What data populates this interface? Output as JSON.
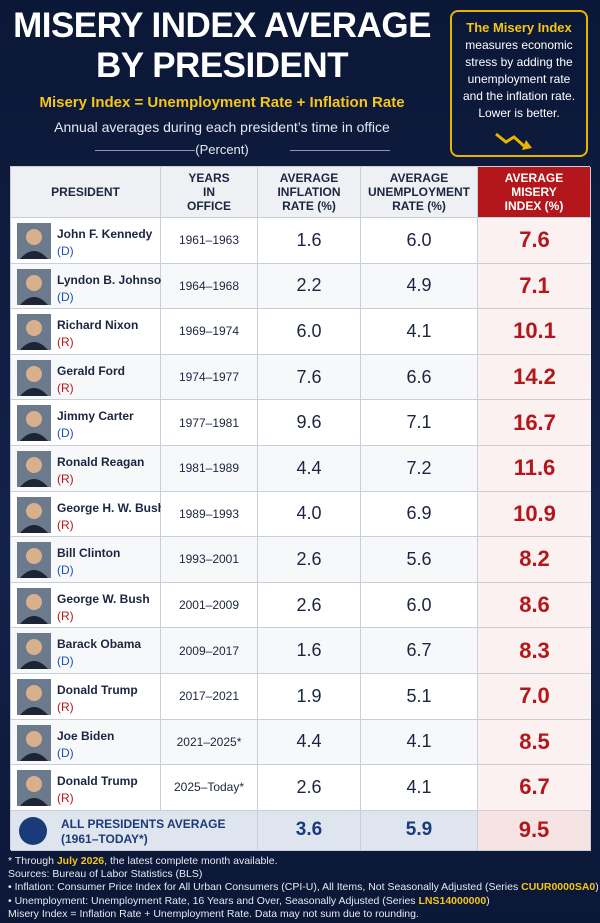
{
  "header": {
    "title_line1": "MISERY INDEX AVERAGE",
    "title_line2": "BY PRESIDENT",
    "formula": "Misery Index = Unemployment Rate + Inflation Rate",
    "subtitle": "Annual averages during each president’s time in office",
    "unit": "(Percent)"
  },
  "callout": {
    "title": "The Misery Index",
    "text": "measures economic stress by adding the unemployment rate and the inflation rate. Lower is better."
  },
  "table": {
    "columns": [
      "PRESIDENT",
      "YEARS IN OFFICE",
      "AVERAGE INFLATION RATE (%)",
      "AVERAGE UNEMPLOYMENT RATE (%)",
      "AVERAGE MISERY INDEX (%)"
    ],
    "rows": [
      [
        "John F. Kennedy",
        "(D)",
        "1961–1963",
        "1.6",
        "6.0",
        "7.6"
      ],
      [
        "Lyndon B. Johnson",
        "(D)",
        "1964–1968",
        "2.2",
        "4.9",
        "7.1"
      ],
      [
        "Richard Nixon",
        "(R)",
        "1969–1974",
        "6.0",
        "4.1",
        "10.1"
      ],
      [
        "Gerald Ford",
        "(R)",
        "1974–1977",
        "7.6",
        "6.6",
        "14.2"
      ],
      [
        "Jimmy Carter",
        "(D)",
        "1977–1981",
        "9.6",
        "7.1",
        "16.7"
      ],
      [
        "Ronald Reagan",
        "(R)",
        "1981–1989",
        "4.4",
        "7.2",
        "11.6"
      ],
      [
        "George H. W. Bush",
        "(R)",
        "1989–1993",
        "4.0",
        "6.9",
        "10.9"
      ],
      [
        "Bill Clinton",
        "(D)",
        "1993–2001",
        "2.6",
        "5.6",
        "8.2"
      ],
      [
        "George W. Bush",
        "(R)",
        "2001–2009",
        "2.6",
        "6.0",
        "8.6"
      ],
      [
        "Barack Obama",
        "(D)",
        "2009–2017",
        "1.6",
        "6.7",
        "8.3"
      ],
      [
        "Donald Trump",
        "(R)",
        "2017–2021",
        "1.9",
        "5.1",
        "7.0"
      ],
      [
        "Joe Biden",
        "(D)",
        "2021–2025*",
        "4.4",
        "4.1",
        "8.5"
      ],
      [
        "Donald Trump",
        "(R)",
        "2025–Today*",
        "2.6",
        "4.1",
        "6.7"
      ]
    ],
    "average": {
      "label": "ALL PRESIDENTS AVERAGE",
      "sublabel": "(1961–TODAY*)",
      "inflation": "3.6",
      "unemployment": "5.9",
      "misery": "9.5"
    }
  },
  "footnotes": [
    [
      "* Through ",
      "July 2026",
      ", the latest complete month available."
    ],
    [
      "Sources: Bureau of Labor Statistics (BLS)"
    ],
    [
      "• Inflation: Consumer Price Index for All Urban Consumers (CPI-U), All Items, Not Seasonally Adjusted (Series ",
      "CUUR0000SA0",
      ")"
    ],
    [
      "• Unemployment: Unemployment Rate, 16 Years and Over, Seasonally Adjusted (Series ",
      "LNS14000000",
      ")"
    ],
    [
      "Misery Index = Inflation Rate + Unemployment Rate. Data may not sum due to rounding."
    ]
  ]
}
